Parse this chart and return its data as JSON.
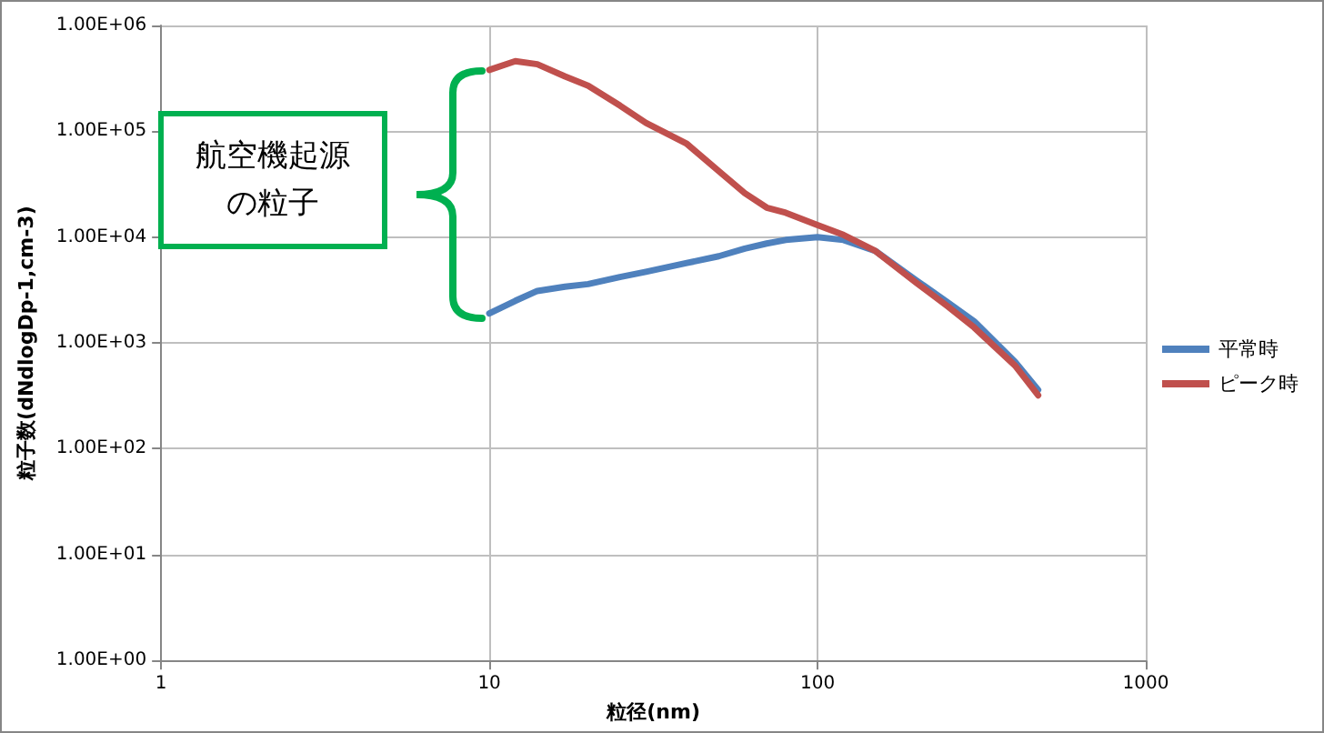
{
  "chart_data": {
    "type": "line",
    "xlabel": "粒径(nm)",
    "ylabel": "粒子数(dNdlogDp-1,cm-3)",
    "log": "xy",
    "grid": true,
    "legend": "right",
    "marker": "none",
    "line_style": "solid",
    "xlim": [
      1,
      1000
    ],
    "xticks": [
      1,
      10,
      100,
      1000
    ],
    "ylim": [
      1,
      1000000
    ],
    "yticks": [
      {
        "value": 1,
        "label": "1.00E+00"
      },
      {
        "value": 10,
        "label": "1.00E+01"
      },
      {
        "value": 100,
        "label": "1.00E+02"
      },
      {
        "value": 1000,
        "label": "1.00E+03"
      },
      {
        "value": 10000,
        "label": "1.00E+04"
      },
      {
        "value": 100000,
        "label": "1.00E+05"
      },
      {
        "value": 1000000,
        "label": "1.00E+06"
      }
    ],
    "annotations": [
      "航空機起源の粒子"
    ],
    "x": [
      10,
      12,
      14,
      17,
      20,
      25,
      30,
      40,
      50,
      60,
      70,
      80,
      100,
      120,
      150,
      200,
      250,
      300,
      400,
      470
    ],
    "series": [
      {
        "name": "平常時",
        "color": "#4f81bd",
        "values": [
          1900,
          2500,
          3100,
          3400,
          3600,
          4200,
          4700,
          5700,
          6600,
          7800,
          8700,
          9400,
          10000,
          9400,
          7400,
          3900,
          2400,
          1600,
          660,
          360
        ]
      },
      {
        "name": "ピーク時",
        "color": "#c0504d",
        "values": [
          380000,
          460000,
          430000,
          330000,
          270000,
          175000,
          120000,
          76000,
          42000,
          26000,
          19000,
          17000,
          13000,
          10500,
          7400,
          3700,
          2200,
          1400,
          610,
          320
        ]
      }
    ]
  }
}
